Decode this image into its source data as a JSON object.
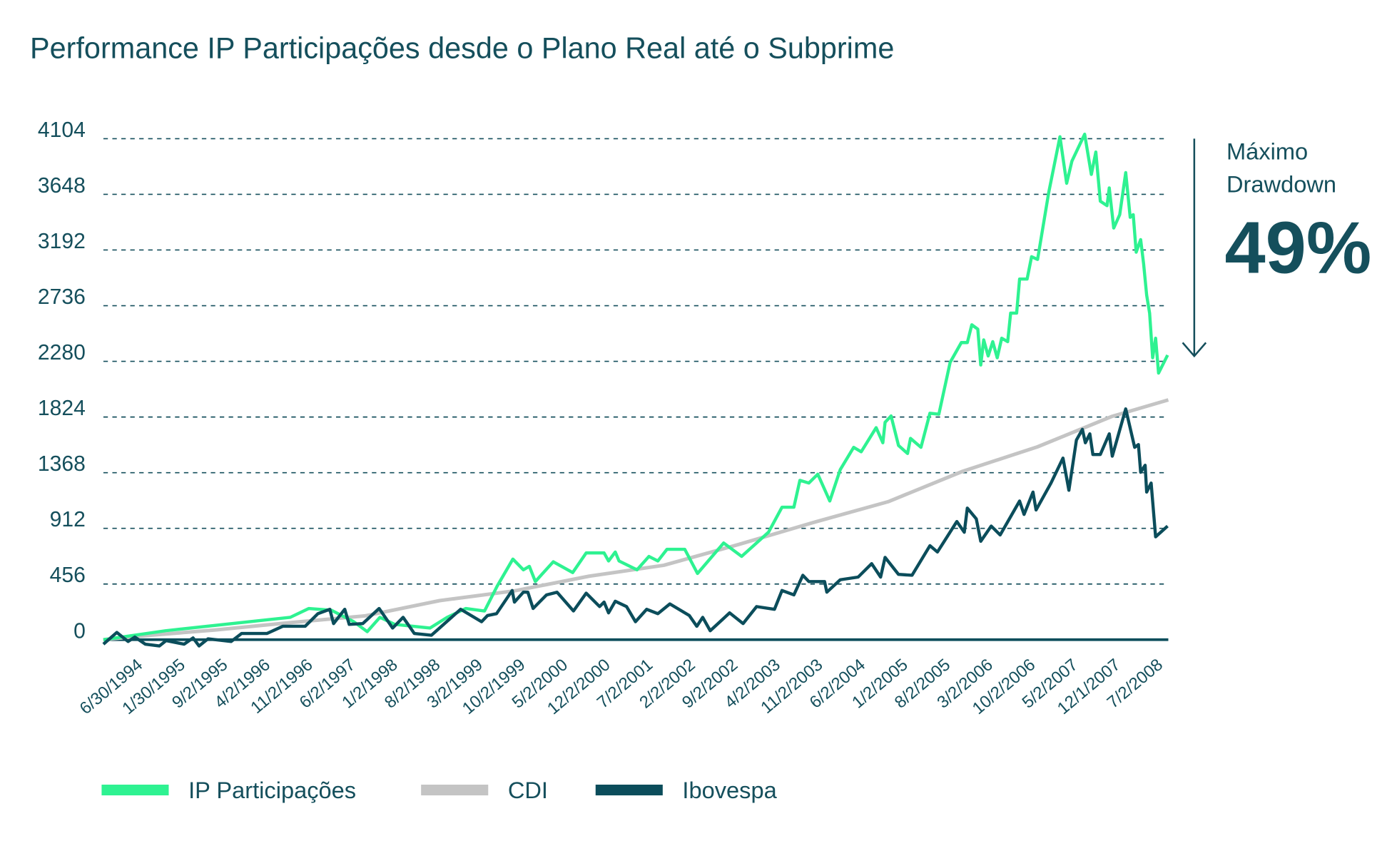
{
  "chart_data": {
    "type": "line",
    "title": "Performance IP Participações desde o Plano Real até o Subprime",
    "xlabel": "",
    "ylabel": "",
    "ylim": [
      0,
      4104
    ],
    "xlim": [
      1994.5,
      2008.75
    ],
    "y_ticks": [
      "4104",
      "3648",
      "3192",
      "2736",
      "2280",
      "1824",
      "1368",
      "912",
      "456",
      "0"
    ],
    "y_tick_values": [
      4104,
      3648,
      3192,
      2736,
      2280,
      1824,
      1368,
      912,
      456,
      0
    ],
    "x_tick_labels": [
      "6/30/1994",
      "1/30/1995",
      "9/2/1995",
      "4/2/1996",
      "11/2/1996",
      "6/2/1997",
      "1/2/1998",
      "8/2/1998",
      "3/2/1999",
      "10/2/1999",
      "5/2/2000",
      "12/2/2000",
      "7/2/2001",
      "2/2/2002",
      "9/2/2002",
      "4/2/2003",
      "11/2/2003",
      "6/2/2004",
      "1/2/2005",
      "8/2/2005",
      "3/2/2006",
      "10/2/2006",
      "5/2/2007",
      "12/1/2007",
      "7/2/2008"
    ],
    "grid": "horizontal dashed",
    "legend_position": "bottom-left",
    "annotation": {
      "line1": "Máximo",
      "line2": "Drawdown",
      "value": "49%"
    },
    "series": [
      {
        "name": "IP Participações",
        "color": "#2ef291",
        "x": [
          1994.5,
          1995.33,
          1997.0,
          1997.25,
          1997.55,
          1997.85,
          1998.03,
          1998.2,
          1998.4,
          1998.87,
          1999.1,
          1999.35,
          1999.6,
          1999.77,
          1999.98,
          2000.12,
          2000.2,
          2000.28,
          2000.52,
          2000.78,
          2000.96,
          2001.2,
          2001.26,
          2001.35,
          2001.4,
          2001.64,
          2001.8,
          2001.92,
          2002.04,
          2002.28,
          2002.45,
          2002.8,
          2003.04,
          2003.4,
          2003.58,
          2003.74,
          2003.82,
          2003.94,
          2004.06,
          2004.22,
          2004.36,
          2004.54,
          2004.64,
          2004.84,
          2004.93,
          2004.96,
          2005.04,
          2005.14,
          2005.26,
          2005.3,
          2005.44,
          2005.56,
          2005.68,
          2005.83,
          2005.98,
          2006.06,
          2006.12,
          2006.2,
          2006.24,
          2006.28,
          2006.34,
          2006.4,
          2006.46,
          2006.52,
          2006.6,
          2006.64,
          2006.72,
          2006.76,
          2006.86,
          2006.92,
          2007.0,
          2007.15,
          2007.3,
          2007.39,
          2007.46,
          2007.63,
          2007.72,
          2007.78,
          2007.84,
          2007.93,
          2007.96,
          2008.02,
          2008.1,
          2008.18,
          2008.24,
          2008.28,
          2008.32,
          2008.38,
          2008.42,
          2008.46,
          2008.5,
          2008.54,
          2008.58,
          2008.62,
          2008.74
        ],
        "values": [
          0,
          73,
          183,
          256,
          242,
          147,
          66,
          183,
          125,
          95,
          183,
          256,
          235,
          440,
          660,
          572,
          601,
          476,
          638,
          550,
          711,
          711,
          645,
          718,
          645,
          572,
          682,
          645,
          740,
          740,
          542,
          792,
          682,
          880,
          1085,
          1085,
          1305,
          1283,
          1356,
          1136,
          1393,
          1576,
          1539,
          1737,
          1613,
          1781,
          1833,
          1591,
          1525,
          1649,
          1576,
          1855,
          1847,
          2272,
          2434,
          2434,
          2580,
          2544,
          2250,
          2456,
          2324,
          2441,
          2309,
          2470,
          2441,
          2675,
          2675,
          2954,
          2954,
          3137,
          3115,
          3665,
          4120,
          3738,
          3921,
          4141,
          3811,
          3995,
          3592,
          3555,
          3701,
          3372,
          3482,
          3826,
          3460,
          3482,
          3174,
          3277,
          3079,
          2822,
          2675,
          2309,
          2470,
          2184,
          2331
        ]
      },
      {
        "name": "CDI",
        "color": "#c4c4c4",
        "x": [
          1994.5,
          1995,
          1996,
          1997,
          1998,
          1999,
          2000,
          2001,
          2002,
          2003,
          2004,
          2005,
          2006,
          2007,
          2008,
          2008.75
        ],
        "values": [
          0,
          30,
          80,
          140,
          195,
          320,
          400,
          520,
          610,
          780,
          960,
          1130,
          1380,
          1580,
          1830,
          1964
        ]
      },
      {
        "name": "Ibovespa",
        "color": "#0b4d5b",
        "x": [
          1994.5,
          1994.68,
          1994.83,
          1994.92,
          1995.06,
          1995.25,
          1995.34,
          1995.58,
          1995.7,
          1995.78,
          1995.9,
          1996.21,
          1996.35,
          1996.69,
          1996.9,
          1997.2,
          1997.37,
          1997.53,
          1997.58,
          1997.73,
          1997.79,
          1997.97,
          1998.19,
          1998.37,
          1998.51,
          1998.66,
          1998.89,
          1999.28,
          1999.56,
          1999.64,
          1999.76,
          1999.97,
          2000.0,
          2000.12,
          2000.18,
          2000.25,
          2000.43,
          2000.57,
          2000.79,
          2000.96,
          2001.14,
          2001.2,
          2001.26,
          2001.35,
          2001.5,
          2001.62,
          2001.77,
          2001.92,
          2002.08,
          2002.34,
          2002.44,
          2002.52,
          2002.62,
          2002.88,
          2003.06,
          2003.24,
          2003.48,
          2003.58,
          2003.74,
          2003.86,
          2003.94,
          2004.15,
          2004.18,
          2004.36,
          2004.6,
          2004.78,
          2004.9,
          2004.96,
          2005.14,
          2005.32,
          2005.56,
          2005.66,
          2005.92,
          2006.02,
          2006.06,
          2006.18,
          2006.24,
          2006.38,
          2006.5,
          2006.76,
          2006.82,
          2006.94,
          2006.98,
          2007.18,
          2007.34,
          2007.42,
          2007.52,
          2007.6,
          2007.64,
          2007.7,
          2007.74,
          2007.84,
          2007.96,
          2008.0,
          2008.18,
          2008.3,
          2008.35,
          2008.38,
          2008.44,
          2008.46,
          2008.52,
          2008.58,
          2008.74
        ],
        "values": [
          -37,
          59,
          -15,
          22,
          -37,
          -51,
          -7,
          -37,
          15,
          -51,
          7,
          -15,
          51,
          51,
          110,
          110,
          213,
          249,
          132,
          249,
          125,
          132,
          256,
          95,
          183,
          51,
          37,
          249,
          147,
          198,
          213,
          403,
          308,
          389,
          389,
          256,
          367,
          389,
          235,
          381,
          271,
          308,
          220,
          315,
          271,
          147,
          249,
          213,
          293,
          198,
          110,
          183,
          73,
          220,
          132,
          271,
          249,
          403,
          367,
          528,
          476,
          476,
          389,
          491,
          513,
          623,
          513,
          674,
          535,
          528,
          770,
          718,
          968,
          880,
          1078,
          990,
          806,
          931,
          858,
          1136,
          1026,
          1209,
          1063,
          1283,
          1488,
          1224,
          1635,
          1723,
          1613,
          1686,
          1517,
          1517,
          1686,
          1503,
          1891,
          1576,
          1598,
          1371,
          1429,
          1209,
          1283,
          843,
          931
        ]
      }
    ]
  }
}
